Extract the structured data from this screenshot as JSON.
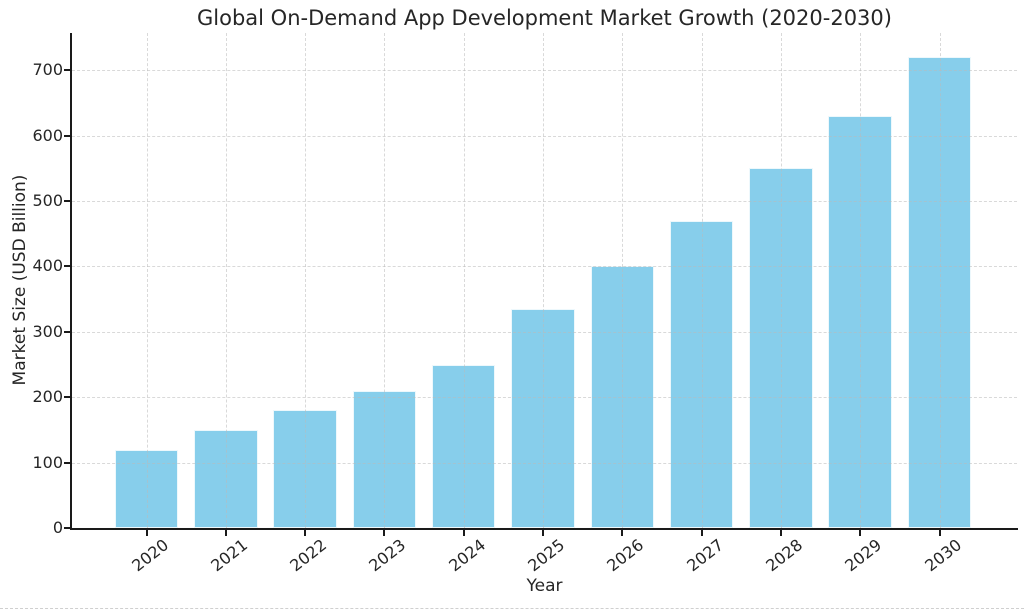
{
  "chart_data": {
    "type": "bar",
    "title": "Global On-Demand App Development Market Growth (2020-2030)",
    "xlabel": "Year",
    "ylabel": "Market Size (USD Billion)",
    "categories": [
      "2020",
      "2021",
      "2022",
      "2023",
      "2024",
      "2025",
      "2026",
      "2027",
      "2028",
      "2029",
      "2030"
    ],
    "values": [
      120,
      150,
      180,
      210,
      250,
      335,
      400,
      470,
      550,
      630,
      720
    ],
    "ylim": [
      0,
      757
    ],
    "yticks": [
      0,
      100,
      200,
      300,
      400,
      500,
      600,
      700
    ],
    "grid": true,
    "legend": "none",
    "bar_color": "#87CEEB",
    "bar_edge_color": "rgba(255,255,255,0.85)",
    "grid_color": "rgba(185,185,185,0.55)",
    "axis_color": "#1a1a1a",
    "text_color": "#262626",
    "background_color": "#ffffff"
  }
}
